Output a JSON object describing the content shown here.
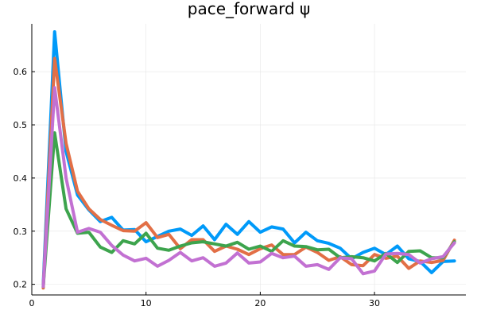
{
  "chart_data": {
    "type": "line",
    "title": "pace_forward ψ",
    "xlabel": "",
    "ylabel": "",
    "xlim": [
      0,
      38
    ],
    "ylim": [
      0.18,
      0.69
    ],
    "xticks": [
      0,
      10,
      20,
      30
    ],
    "yticks": [
      0.2,
      0.3,
      0.4,
      0.5,
      0.6
    ],
    "x_tick_labels": [
      "0",
      "10",
      "20",
      "30"
    ],
    "y_tick_labels": [
      "0.2",
      "0.3",
      "0.4",
      "0.5",
      "0.6"
    ],
    "grid": true,
    "legend": "none",
    "x": [
      1,
      2,
      3,
      4,
      5,
      6,
      7,
      8,
      9,
      10,
      11,
      12,
      13,
      14,
      15,
      16,
      17,
      18,
      19,
      20,
      21,
      22,
      23,
      24,
      25,
      26,
      27,
      28,
      29,
      30,
      31,
      32,
      33,
      34,
      35,
      36,
      37
    ],
    "series": [
      {
        "color": "#009af9",
        "values": [
          0.2,
          0.675,
          0.45,
          0.368,
          0.34,
          0.318,
          0.326,
          0.302,
          0.303,
          0.28,
          0.29,
          0.3,
          0.304,
          0.292,
          0.31,
          0.284,
          0.313,
          0.294,
          0.318,
          0.298,
          0.308,
          0.304,
          0.278,
          0.298,
          0.282,
          0.277,
          0.268,
          0.248,
          0.26,
          0.268,
          0.256,
          0.272,
          0.248,
          0.243,
          0.222,
          0.243,
          0.244
        ]
      },
      {
        "color": "#e26f46",
        "values": [
          0.193,
          0.625,
          0.465,
          0.375,
          0.342,
          0.322,
          0.311,
          0.301,
          0.3,
          0.316,
          0.288,
          0.294,
          0.267,
          0.284,
          0.284,
          0.262,
          0.272,
          0.266,
          0.256,
          0.267,
          0.274,
          0.256,
          0.256,
          0.27,
          0.26,
          0.245,
          0.252,
          0.237,
          0.235,
          0.256,
          0.249,
          0.253,
          0.23,
          0.244,
          0.241,
          0.245,
          0.283
        ]
      },
      {
        "color": "#3da44d",
        "values": [
          0.196,
          0.485,
          0.342,
          0.296,
          0.298,
          0.27,
          0.26,
          0.282,
          0.276,
          0.296,
          0.268,
          0.264,
          0.272,
          0.278,
          0.28,
          0.276,
          0.272,
          0.279,
          0.266,
          0.272,
          0.262,
          0.282,
          0.272,
          0.271,
          0.265,
          0.266,
          0.25,
          0.252,
          0.25,
          0.244,
          0.258,
          0.241,
          0.262,
          0.263,
          0.25,
          0.25,
          0.28
        ]
      },
      {
        "color": "#c271d2",
        "values": [
          0.196,
          0.57,
          0.4,
          0.298,
          0.305,
          0.298,
          0.273,
          0.255,
          0.244,
          0.249,
          0.234,
          0.245,
          0.26,
          0.244,
          0.25,
          0.234,
          0.24,
          0.259,
          0.24,
          0.242,
          0.258,
          0.25,
          0.253,
          0.234,
          0.237,
          0.228,
          0.25,
          0.248,
          0.22,
          0.225,
          0.257,
          0.258,
          0.256,
          0.24,
          0.248,
          0.252,
          0.278
        ]
      }
    ]
  }
}
